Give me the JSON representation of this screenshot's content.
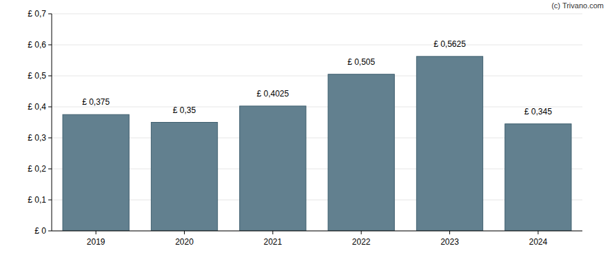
{
  "chart_data": {
    "type": "bar",
    "categories": [
      "2019",
      "2020",
      "2021",
      "2022",
      "2023",
      "2024"
    ],
    "values": [
      0.375,
      0.35,
      0.4025,
      0.505,
      0.5625,
      0.345
    ],
    "value_labels": [
      "£ 0,375",
      "£ 0,35",
      "£ 0,4025",
      "£ 0,505",
      "£ 0,5625",
      "£ 0,345"
    ],
    "color": "#62808f",
    "ylim": [
      0,
      0.7
    ],
    "yticks": [
      {
        "value": 0,
        "label": "£ 0"
      },
      {
        "value": 0.1,
        "label": "£ 0,1"
      },
      {
        "value": 0.2,
        "label": "£ 0,2"
      },
      {
        "value": 0.3,
        "label": "£ 0,3"
      },
      {
        "value": 0.4,
        "label": "£ 0,4"
      },
      {
        "value": 0.5,
        "label": "£ 0,5"
      },
      {
        "value": 0.6,
        "label": "£ 0,6"
      },
      {
        "value": 0.7,
        "label": "£ 0,7"
      }
    ],
    "grid": true,
    "data_labels": true,
    "annotations": [
      "(c) Trivano.com"
    ]
  }
}
